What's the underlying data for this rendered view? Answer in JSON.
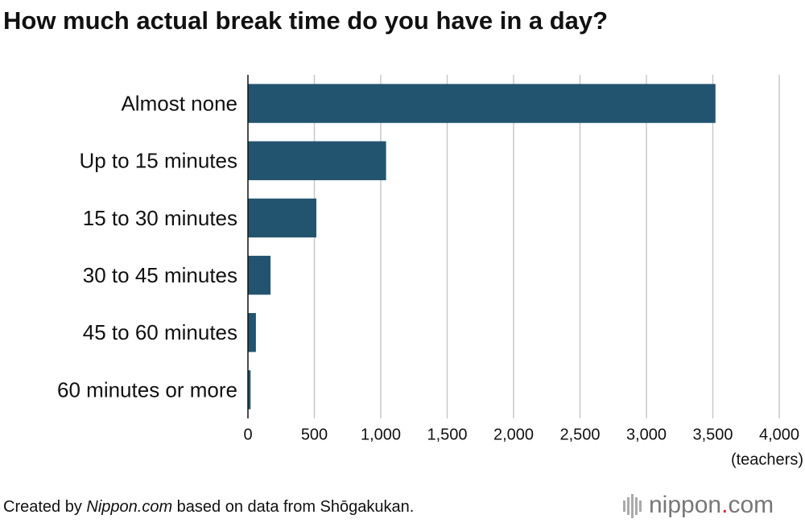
{
  "chart_data": {
    "type": "barh",
    "title": "How much actual break time do you have in a day?",
    "categories": [
      "Almost none",
      "Up to 15 minutes",
      "15 to 30 minutes",
      "30 to 45 minutes",
      "45 to 60 minutes",
      "60 minutes or more"
    ],
    "values": [
      3520,
      1040,
      515,
      170,
      60,
      20
    ],
    "color": "#22546f",
    "xlim": [
      0,
      4000
    ],
    "xticks": [
      0,
      500,
      {
        "value": 1000,
        "label": "1,000"
      },
      {
        "value": 1500,
        "label": "1,500"
      },
      {
        "value": 2000,
        "label": "2,000"
      },
      {
        "value": 2500,
        "label": "2,500"
      },
      {
        "value": 3000,
        "label": "3,000"
      },
      {
        "value": 3500,
        "label": "3,500"
      },
      {
        "value": 4000,
        "label": "4,000"
      }
    ],
    "x_unit": "(teachers)",
    "grid": true
  },
  "footer": {
    "source": [
      "Created by ",
      "Nippon.com",
      " based on data from Shōgakukan."
    ],
    "logo": [
      "nippon",
      ".",
      "com"
    ]
  }
}
